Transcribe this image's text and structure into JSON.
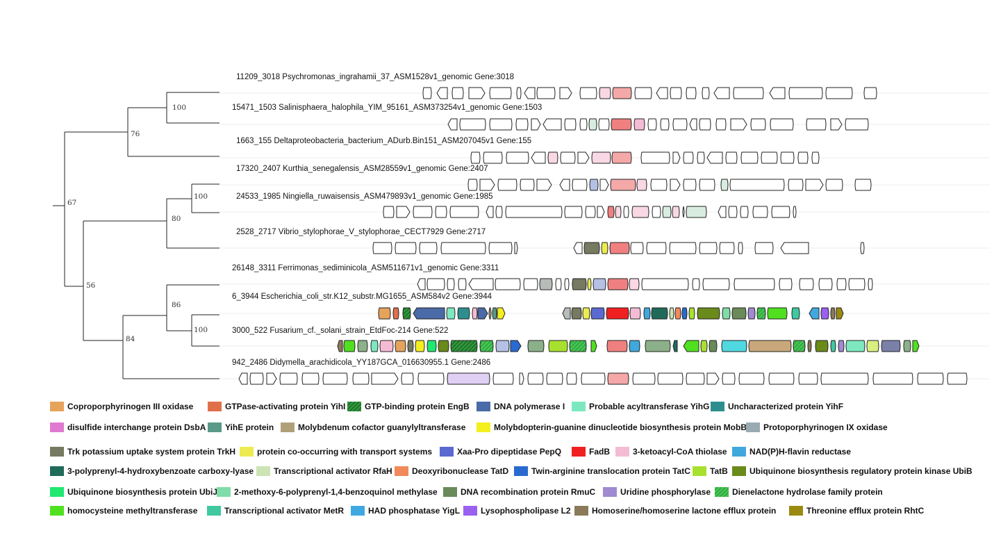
{
  "tree": {
    "bootstrap_values": [
      "100",
      "76",
      "67",
      "100",
      "80",
      "56",
      "86",
      "100",
      "84"
    ],
    "taxa": [
      "11209_3018 Psychromonas_ingrahamii_37_ASM1528v1_genomic Gene:3018",
      "15471_1503 Salinisphaera_halophila_YIM_95161_ASM373254v1_genomic Gene:1503",
      "1663_155 Deltaproteobacteria_bacterium_ADurb.Bin151_ASM207045v1 Gene:155",
      "17320_2407 Kurthia_senegalensis_ASM28559v1_genomic Gene:2407",
      "24533_1985 Ningiella_ruwaisensis_ASM479893v1_genomic Gene:1985",
      "2528_2717 Vibrio_stylophorae_V_stylophorae_CECT7929 Gene:2717",
      "26148_3311 Ferrimonas_sediminicola_ASM511671v1_genomic Gene:3311",
      "6_3944 Escherichia_coli_str.K12_substr.MG1655_ASM584v2 Gene:3944",
      "3000_522 Fusarium_cf._solani_strain_EtdFoc-214 Gene:522",
      "942_2486 Didymella_arachidicola_YY187GCA_016630955.1 Gene:2486"
    ]
  },
  "legend": [
    {
      "label": "Coproporphyrinogen III oxidase",
      "color": "#e6a35c"
    },
    {
      "label": "GTPase-activating protein YihI",
      "color": "#e0704a"
    },
    {
      "label": "GTP-binding protein EngB",
      "color": "#1e7a2a",
      "pattern": true
    },
    {
      "label": "DNA polymerase I",
      "color": "#4a6aa8"
    },
    {
      "label": "Probable acyltransferase YihG",
      "color": "#7de8c0"
    },
    {
      "label": "Uncharacterized protein YihF",
      "color": "#2e8e8e"
    },
    {
      "label": "disulfide interchange protein DsbA",
      "color": "#e07ad0"
    },
    {
      "label": "YihE protein",
      "color": "#5a9a88"
    },
    {
      "label": "Molybdenum cofactor guanylyltransferase",
      "color": "#b0a07a"
    },
    {
      "label": "Molybdopterin-guanine dinucleotide biosynthesis protein MobB",
      "color": "#f4f020"
    },
    {
      "label": "Protoporphyrinogen IX oxidase",
      "color": "#9aaab2"
    },
    {
      "label": "Trk potassium uptake system protein TrkH",
      "color": "#767a60"
    },
    {
      "label": "protein co-occurring with transport systems",
      "color": "#ecec50"
    },
    {
      "label": "Xaa-Pro dipeptidase PepQ",
      "color": "#5a6ad0"
    },
    {
      "label": "FadB",
      "color": "#f02020"
    },
    {
      "label": "3-ketoacyl-CoA thiolase",
      "color": "#f4bcd4"
    },
    {
      "label": "NAD(P)H-flavin reductase",
      "color": "#40a8dc"
    },
    {
      "label": "3-polyprenyl-4-hydroxybenzoate carboxy-lyase",
      "color": "#206a5a"
    },
    {
      "label": "Transcriptional activator RfaH",
      "color": "#cce4b4"
    },
    {
      "label": "Deoxyribonuclease TatD",
      "color": "#f08a5a"
    },
    {
      "label": "Twin-arginine translocation protein TatC",
      "color": "#2a6ad0"
    },
    {
      "label": "TatB",
      "color": "#a8e030"
    },
    {
      "label": "Ubiquinone biosynthesis regulatory protein kinase UbiB",
      "color": "#6a8a1a"
    },
    {
      "label": "Ubiquinone biosynthesis protein UbiJ",
      "color": "#20e870"
    },
    {
      "label": "2-methoxy-6-polyprenyl-1,4-benzoquinol methylase",
      "color": "#80dca8"
    },
    {
      "label": "DNA recombination protein RmuC",
      "color": "#6a8a5a"
    },
    {
      "label": "Uridine phosphorylase",
      "color": "#a08ad0"
    },
    {
      "label": "Dienelactone hydrolase family protein",
      "color": "#30b040",
      "pattern": true
    },
    {
      "label": "homocysteine methyltransferase",
      "color": "#50e020"
    },
    {
      "label": "Transcriptional activator MetR",
      "color": "#40c8a0"
    },
    {
      "label": "HAD phosphatase YigL",
      "color": "#40a8e0"
    },
    {
      "label": "Lysophospholipase L2",
      "color": "#9a60f0"
    },
    {
      "label": "Homoserine/homoserine lactone efflux protein",
      "color": "#8a7a5a"
    },
    {
      "label": "Threonine efflux protein RhtC",
      "color": "#9a8a10"
    }
  ]
}
